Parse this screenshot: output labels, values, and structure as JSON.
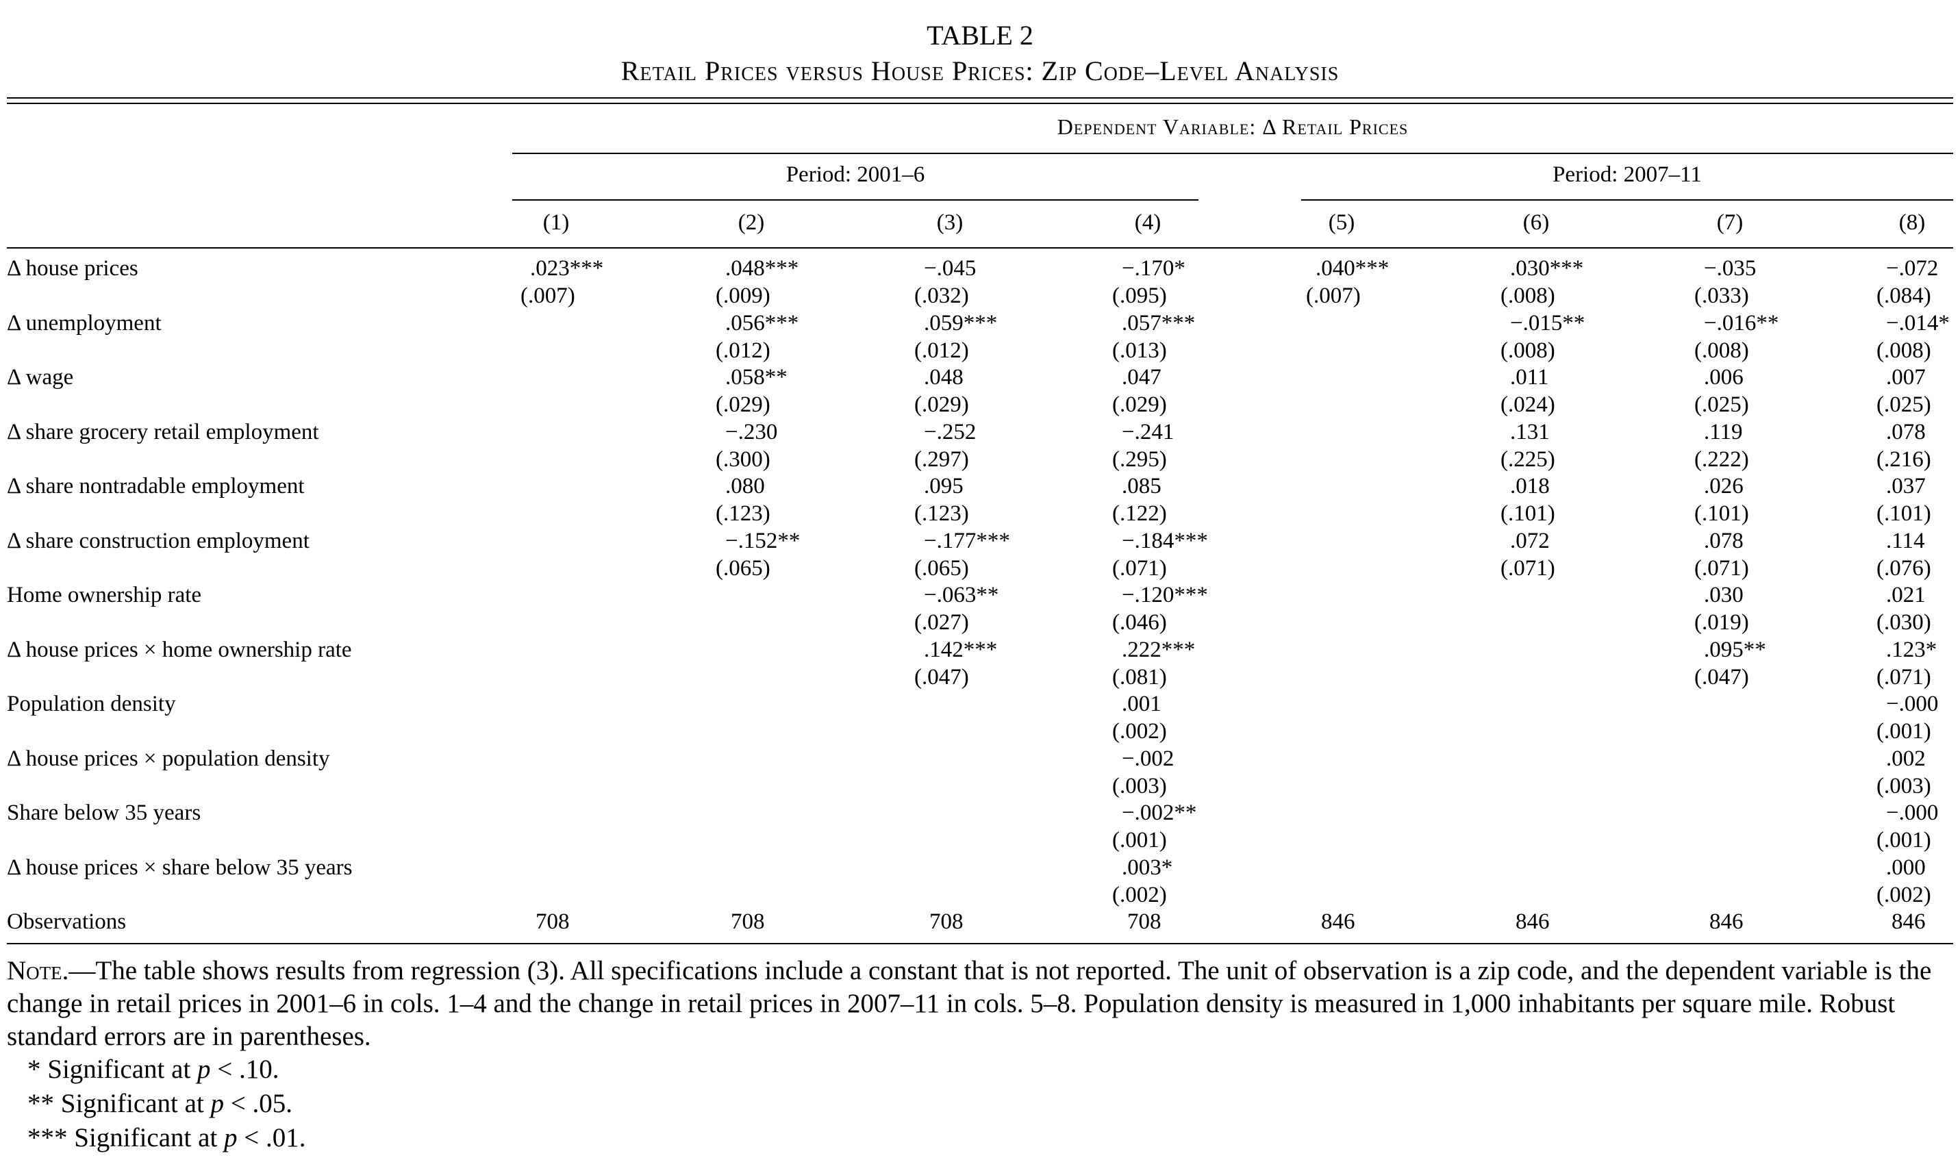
{
  "table": {
    "title": "TABLE 2",
    "subtitle": "Retail Prices versus House Prices: Zip Code–Level Analysis",
    "dependent_variable": "Dependent Variable: Δ Retail Prices",
    "periods": [
      "Period: 2001–6",
      "Period: 2007–11"
    ],
    "columns": [
      "(1)",
      "(2)",
      "(3)",
      "(4)",
      "(5)",
      "(6)",
      "(7)",
      "(8)"
    ],
    "rows": [
      {
        "label": "Δ house prices",
        "coef": [
          ".023***",
          ".048***",
          "−.045",
          "−.170*",
          ".040***",
          ".030***",
          "−.035",
          "−.072"
        ],
        "se": [
          "(.007)",
          "(.009)",
          "(.032)",
          "(.095)",
          "(.007)",
          "(.008)",
          "(.033)",
          "(.084)"
        ]
      },
      {
        "label": "Δ unemployment",
        "coef": [
          "",
          ".056***",
          ".059***",
          ".057***",
          "",
          "−.015**",
          "−.016**",
          "−.014*"
        ],
        "se": [
          "",
          "(.012)",
          "(.012)",
          "(.013)",
          "",
          "(.008)",
          "(.008)",
          "(.008)"
        ]
      },
      {
        "label": "Δ wage",
        "coef": [
          "",
          ".058**",
          ".048",
          ".047",
          "",
          ".011",
          ".006",
          ".007"
        ],
        "se": [
          "",
          "(.029)",
          "(.029)",
          "(.029)",
          "",
          "(.024)",
          "(.025)",
          "(.025)"
        ]
      },
      {
        "label": "Δ share grocery retail employment",
        "coef": [
          "",
          "−.230",
          "−.252",
          "−.241",
          "",
          ".131",
          ".119",
          ".078"
        ],
        "se": [
          "",
          "(.300)",
          "(.297)",
          "(.295)",
          "",
          "(.225)",
          "(.222)",
          "(.216)"
        ]
      },
      {
        "label": "Δ share nontradable employment",
        "coef": [
          "",
          ".080",
          ".095",
          ".085",
          "",
          ".018",
          ".026",
          ".037"
        ],
        "se": [
          "",
          "(.123)",
          "(.123)",
          "(.122)",
          "",
          "(.101)",
          "(.101)",
          "(.101)"
        ]
      },
      {
        "label": "Δ share construction employment",
        "coef": [
          "",
          "−.152**",
          "−.177***",
          "−.184***",
          "",
          ".072",
          ".078",
          ".114"
        ],
        "se": [
          "",
          "(.065)",
          "(.065)",
          "(.071)",
          "",
          "(.071)",
          "(.071)",
          "(.076)"
        ]
      },
      {
        "label": "Home ownership rate",
        "coef": [
          "",
          "",
          "−.063**",
          "−.120***",
          "",
          "",
          ".030",
          ".021"
        ],
        "se": [
          "",
          "",
          "(.027)",
          "(.046)",
          "",
          "",
          "(.019)",
          "(.030)"
        ]
      },
      {
        "label": "Δ house prices × home ownership rate",
        "coef": [
          "",
          "",
          ".142***",
          ".222***",
          "",
          "",
          ".095**",
          ".123*"
        ],
        "se": [
          "",
          "",
          "(.047)",
          "(.081)",
          "",
          "",
          "(.047)",
          "(.071)"
        ]
      },
      {
        "label": "Population density",
        "coef": [
          "",
          "",
          "",
          ".001",
          "",
          "",
          "",
          "−.000"
        ],
        "se": [
          "",
          "",
          "",
          "(.002)",
          "",
          "",
          "",
          "(.001)"
        ]
      },
      {
        "label": "Δ house prices × population density",
        "coef": [
          "",
          "",
          "",
          "−.002",
          "",
          "",
          "",
          ".002"
        ],
        "se": [
          "",
          "",
          "",
          "(.003)",
          "",
          "",
          "",
          "(.003)"
        ]
      },
      {
        "label": "Share below 35 years",
        "coef": [
          "",
          "",
          "",
          "−.002**",
          "",
          "",
          "",
          "−.000"
        ],
        "se": [
          "",
          "",
          "",
          "(.001)",
          "",
          "",
          "",
          "(.001)"
        ]
      },
      {
        "label": "Δ house prices × share below 35 years",
        "coef": [
          "",
          "",
          "",
          ".003*",
          "",
          "",
          "",
          ".000"
        ],
        "se": [
          "",
          "",
          "",
          "(.002)",
          "",
          "",
          "",
          "(.002)"
        ]
      }
    ],
    "observations": {
      "label": "Observations",
      "values": [
        "708",
        "708",
        "708",
        "708",
        "846",
        "846",
        "846",
        "846"
      ]
    }
  },
  "note": {
    "lead": "Note.",
    "text": "—The table shows results from regression (3). All specifications include a constant that is not reported. The unit of observation is a zip code, and the dependent variable is the change in retail prices in 2001–6 in cols. 1–4 and the change in retail prices in 2007–11 in cols. 5–8. Population density is measured in 1,000 inhabitants per square mile. Robust standard errors are in parentheses.",
    "significance": [
      {
        "stars": "*",
        "text": "Significant at",
        "p": "p",
        "threshold": "< .10."
      },
      {
        "stars": "**",
        "text": "Significant at",
        "p": "p",
        "threshold": "< .05."
      },
      {
        "stars": "***",
        "text": "Significant at",
        "p": "p",
        "threshold": "< .01."
      }
    ]
  }
}
